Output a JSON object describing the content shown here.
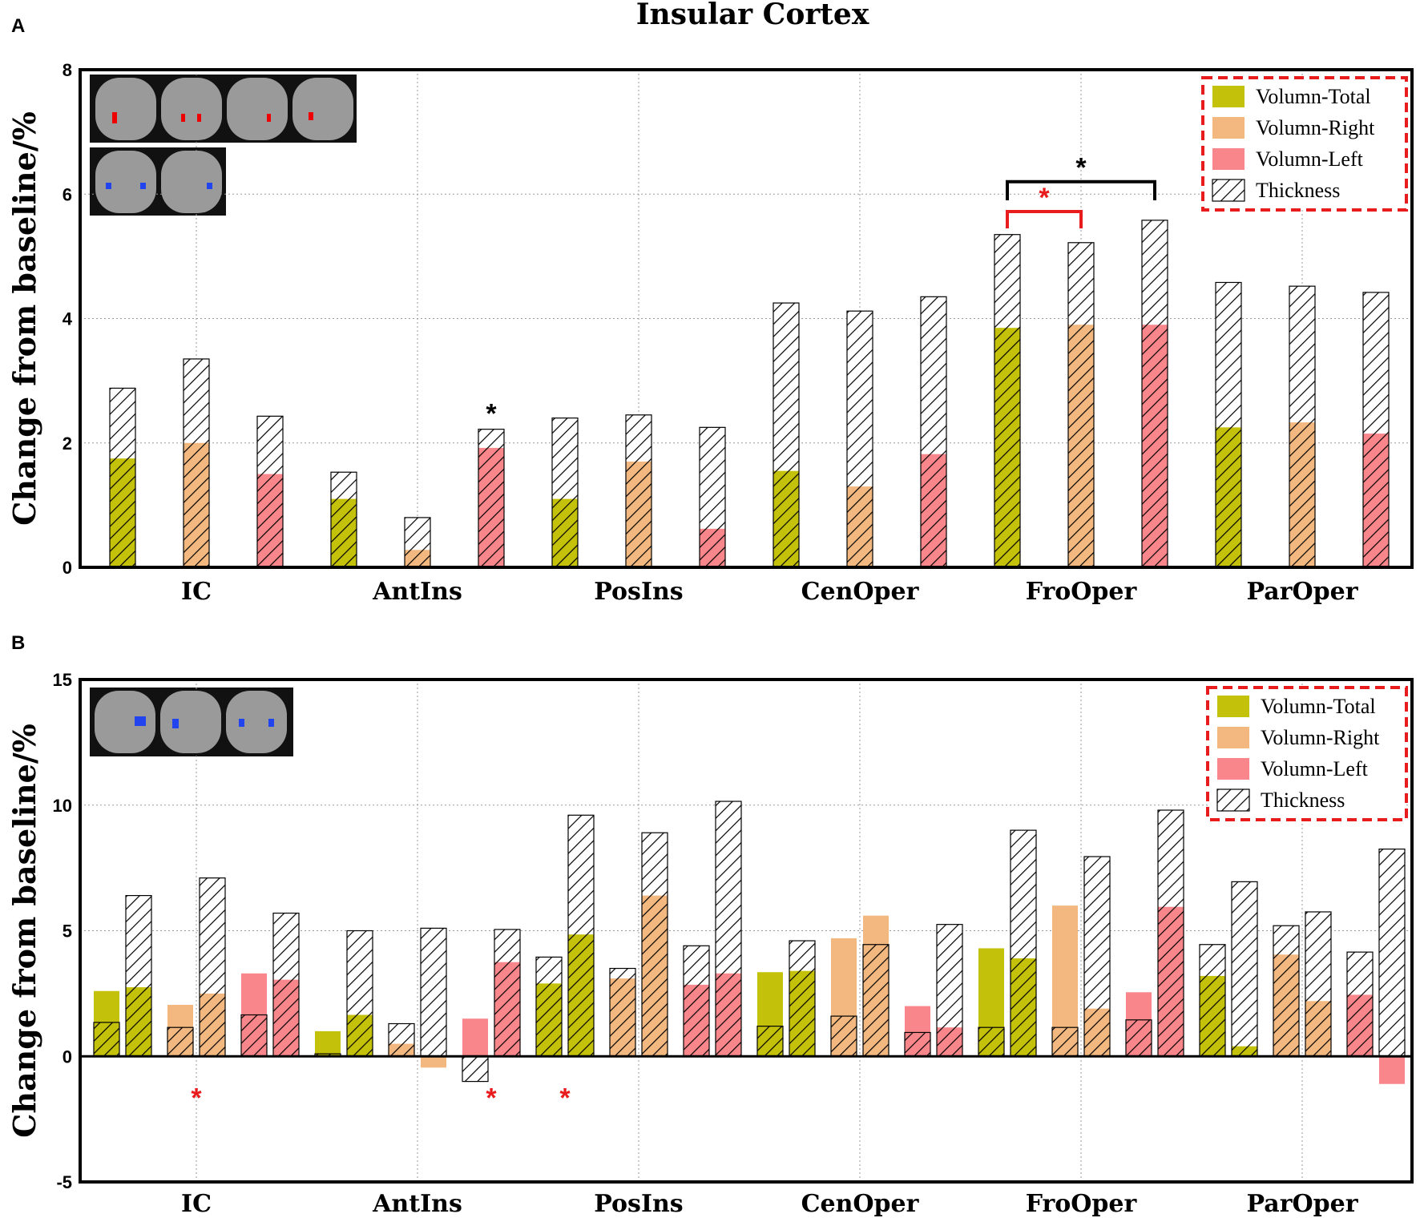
{
  "title": "Insular Cortex",
  "colors": {
    "total": "#c4c10a",
    "right": "#f2b87f",
    "left": "#f8868a",
    "axis": "#000000",
    "grid": "#9a9a9a",
    "sig_red": "#e81c1c",
    "sig_black": "#000000"
  },
  "legend": [
    {
      "key": "total",
      "label": "Volumn-Total"
    },
    {
      "key": "right",
      "label": "Volumn-Right"
    },
    {
      "key": "left",
      "label": "Volumn-Left"
    },
    {
      "key": "thickness",
      "label": "Thickness"
    }
  ],
  "chart_data": [
    {
      "panel": "A",
      "type": "bar",
      "ylabel": "Change from baseline/%",
      "ylim": [
        0,
        8
      ],
      "yticks": [
        "0",
        "2",
        "4",
        "6",
        "8"
      ],
      "categories": [
        "IC",
        "AntIns",
        "PosIns",
        "CenOper",
        "FroOper",
        "ParOper"
      ],
      "series": [
        {
          "name": "Volumn-Total",
          "volume": [
            1.75,
            1.1,
            1.1,
            1.55,
            3.85,
            2.25
          ],
          "thickness": [
            2.88,
            1.53,
            2.4,
            4.25,
            5.35,
            4.58
          ]
        },
        {
          "name": "Volumn-Right",
          "volume": [
            2.0,
            0.28,
            1.7,
            1.3,
            3.9,
            2.33
          ],
          "thickness": [
            3.35,
            0.8,
            2.45,
            4.12,
            5.22,
            4.52
          ]
        },
        {
          "name": "Volumn-Left",
          "volume": [
            1.5,
            1.92,
            0.62,
            1.82,
            3.9,
            2.15
          ],
          "thickness": [
            2.43,
            2.22,
            2.25,
            4.35,
            5.58,
            4.42
          ]
        }
      ],
      "annotations": [
        {
          "text": "*",
          "color": "black",
          "category": "AntIns",
          "series": 2
        },
        {
          "text": "*",
          "color": "red",
          "bracket": [
            "FroOper",
            0,
            1
          ]
        },
        {
          "text": "*",
          "color": "black",
          "bracket": [
            "FroOper",
            0,
            2
          ]
        }
      ],
      "legend_position": "top-right"
    },
    {
      "panel": "B",
      "type": "bar",
      "ylabel": "Change from baseline/%",
      "ylim": [
        -5,
        15
      ],
      "yticks": [
        "-5",
        "0",
        "5",
        "10",
        "15"
      ],
      "categories": [
        "IC",
        "AntIns",
        "PosIns",
        "CenOper",
        "FroOper",
        "ParOper"
      ],
      "series": [
        {
          "name": "Volumn-Total",
          "bars1": [
            {
              "v": 2.6,
              "t": 1.35,
              "fr": 1.35
            },
            {
              "v": 1.0,
              "t": 0.1,
              "fr": 0.1
            },
            {
              "v": 2.9,
              "t": 3.95,
              "fr": 2.9
            },
            {
              "v": 3.35,
              "t": 1.2,
              "fr": 1.2
            },
            {
              "v": 4.3,
              "t": 1.15,
              "fr": 1.15
            },
            {
              "v": 3.2,
              "t": 4.45,
              "fr": 3.2
            }
          ],
          "bars2": [
            {
              "v": 2.75,
              "t": 6.4,
              "fr": 2.75
            },
            {
              "v": 1.65,
              "t": 5.0,
              "fr": 1.65
            },
            {
              "v": 4.85,
              "t": 9.6,
              "fr": 4.85
            },
            {
              "v": 3.4,
              "t": 4.6,
              "fr": 3.4
            },
            {
              "v": 3.9,
              "t": 9.0,
              "fr": 3.9
            },
            {
              "v": 0.4,
              "t": 6.95,
              "fr": 0.4
            }
          ]
        },
        {
          "name": "Volumn-Right",
          "bars1": [
            {
              "v": 2.05,
              "t": 1.15,
              "fr": 1.15
            },
            {
              "v": 0.5,
              "t": 1.3,
              "fr": 0.5
            },
            {
              "v": 3.1,
              "t": 3.5,
              "fr": 3.1
            },
            {
              "v": 4.7,
              "t": 1.6,
              "fr": 1.6
            },
            {
              "v": 6.0,
              "t": 1.15,
              "fr": 1.15
            },
            {
              "v": 4.05,
              "t": 5.2,
              "fr": 4.05
            }
          ],
          "bars2": [
            {
              "v": 2.5,
              "t": 7.1,
              "fr": 2.5
            },
            {
              "v": -0.45,
              "t": 5.1,
              "fr": 0
            },
            {
              "v": 6.4,
              "t": 8.9,
              "fr": 6.4
            },
            {
              "v": 5.6,
              "t": 4.45,
              "fr": 4.45
            },
            {
              "v": 1.9,
              "t": 7.95,
              "fr": 1.9
            },
            {
              "v": 2.2,
              "t": 5.75,
              "fr": 2.2
            }
          ]
        },
        {
          "name": "Volumn-Left",
          "bars1": [
            {
              "v": 3.3,
              "t": 1.65,
              "fr": 1.65
            },
            {
              "v": 1.5,
              "t": -1.0,
              "fr": 0
            },
            {
              "v": 2.85,
              "t": 4.4,
              "fr": 2.85
            },
            {
              "v": 2.0,
              "t": 0.95,
              "fr": 0.95
            },
            {
              "v": 2.55,
              "t": 1.45,
              "fr": 1.45
            },
            {
              "v": 2.45,
              "t": 4.15,
              "fr": 2.45
            }
          ],
          "bars2": [
            {
              "v": 3.05,
              "t": 5.7,
              "fr": 3.05
            },
            {
              "v": 3.75,
              "t": 5.05,
              "fr": 3.75
            },
            {
              "v": 3.3,
              "t": 10.15,
              "fr": 3.3
            },
            {
              "v": 1.15,
              "t": 5.25,
              "fr": 1.15
            },
            {
              "v": 5.95,
              "t": 9.8,
              "fr": 5.95
            },
            {
              "v": -1.1,
              "t": 8.25,
              "fr": 0
            }
          ]
        }
      ],
      "annotations": [
        {
          "text": "*",
          "color": "red",
          "value": -1.5,
          "category": "IC"
        },
        {
          "text": "*",
          "color": "red",
          "value": -1.5,
          "category": "AntIns",
          "series": 2
        },
        {
          "text": "*",
          "color": "red",
          "value": -1.5,
          "category": "PosIns",
          "series": 0
        }
      ],
      "legend_position": "top-right"
    }
  ],
  "panels": [
    {
      "label": "A"
    },
    {
      "label": "B"
    }
  ]
}
